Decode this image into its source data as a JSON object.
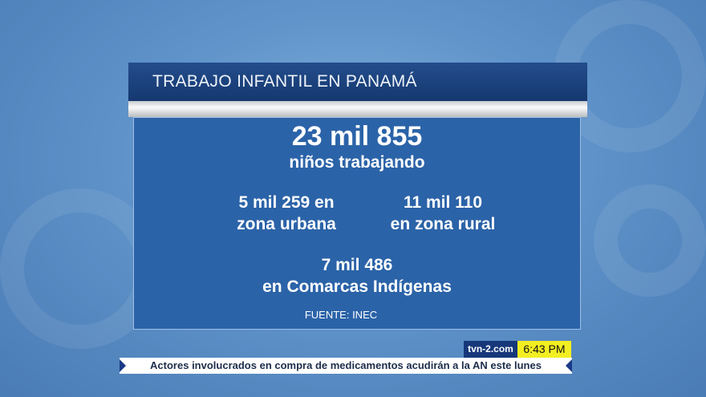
{
  "graphic": {
    "title": "TRABAJO INFANTIL EN PANAMÁ",
    "total_value": "23 mil 855",
    "total_label": "niños trabajando",
    "urban_value": "5 mil 259 en",
    "urban_label": "zona urbana",
    "rural_value": "11 mil 110",
    "rural_label": "en zona rural",
    "comarcas_value": "7 mil 486",
    "comarcas_label": "en Comarcas Indígenas",
    "source": "FUENTE: INEC"
  },
  "ticker": {
    "site": "tvn-2.com",
    "time": "6:43 PM",
    "headline": "Actores involucrados en compra de medicamentos acudirán a la AN este lunes"
  },
  "colors": {
    "header": "#15386f",
    "panel": "#2b63a8",
    "time_badge": "#f3ee22"
  }
}
